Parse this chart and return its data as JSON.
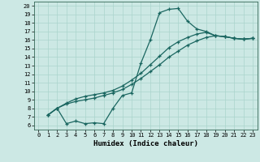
{
  "xlabel": "Humidex (Indice chaleur)",
  "background_color": "#cce8e4",
  "grid_color": "#aad4cc",
  "line_color": "#1a6660",
  "xlim": [
    -0.5,
    23.5
  ],
  "ylim": [
    5.5,
    20.5
  ],
  "xticks": [
    0,
    1,
    2,
    3,
    4,
    5,
    6,
    7,
    8,
    9,
    10,
    11,
    12,
    13,
    14,
    15,
    16,
    17,
    18,
    19,
    20,
    21,
    22,
    23
  ],
  "yticks": [
    6,
    7,
    8,
    9,
    10,
    11,
    12,
    13,
    14,
    15,
    16,
    17,
    18,
    19,
    20
  ],
  "line1_x": [
    1,
    2,
    3,
    4,
    5,
    6,
    7,
    8,
    9,
    10,
    11,
    12,
    13,
    14,
    15,
    16,
    17,
    18,
    19,
    20,
    21,
    22,
    23
  ],
  "line1_y": [
    7.2,
    8.0,
    6.2,
    6.5,
    6.2,
    6.3,
    6.2,
    8.0,
    9.5,
    9.8,
    13.3,
    16.0,
    19.2,
    19.6,
    19.7,
    18.2,
    17.3,
    17.0,
    16.5,
    16.4,
    16.2,
    16.1,
    16.2
  ],
  "line2_x": [
    1,
    2,
    3,
    4,
    5,
    6,
    7,
    8,
    9,
    10,
    11,
    12,
    13,
    14,
    15,
    16,
    17,
    18,
    19,
    20,
    21,
    22,
    23
  ],
  "line2_y": [
    7.2,
    8.0,
    8.5,
    8.8,
    9.0,
    9.2,
    9.5,
    9.8,
    10.2,
    10.8,
    11.5,
    12.3,
    13.1,
    14.0,
    14.7,
    15.4,
    15.9,
    16.3,
    16.5,
    16.4,
    16.2,
    16.1,
    16.2
  ],
  "line3_x": [
    1,
    2,
    3,
    4,
    5,
    6,
    7,
    8,
    9,
    10,
    11,
    12,
    13,
    14,
    15,
    16,
    17,
    18,
    19,
    20,
    21,
    22,
    23
  ],
  "line3_y": [
    7.2,
    8.0,
    8.6,
    9.1,
    9.4,
    9.6,
    9.8,
    10.1,
    10.6,
    11.3,
    12.1,
    13.1,
    14.1,
    15.1,
    15.8,
    16.3,
    16.7,
    16.9,
    16.5,
    16.4,
    16.2,
    16.1,
    16.2
  ],
  "xlabel_fontsize": 6.5,
  "tick_fontsize": 5.0,
  "linewidth": 0.9,
  "markersize": 3.0
}
